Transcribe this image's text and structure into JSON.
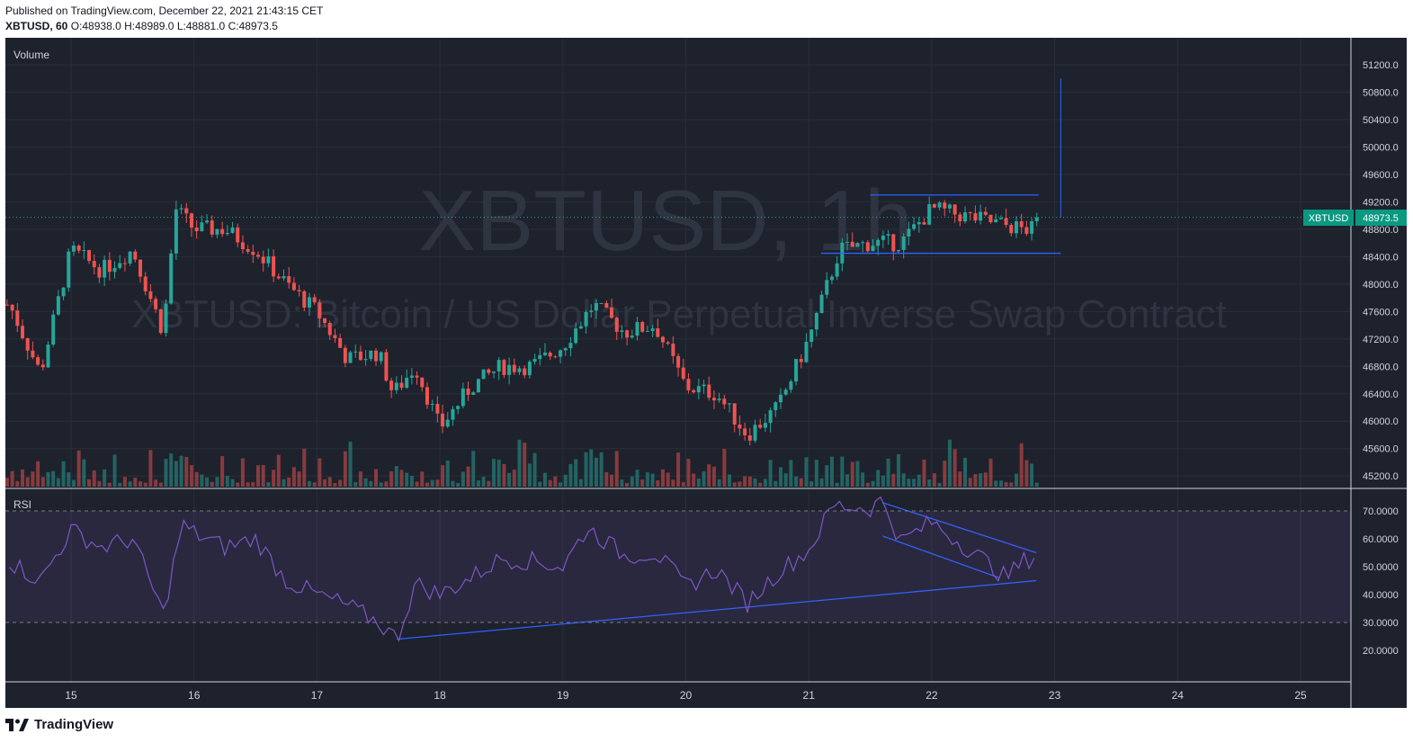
{
  "header": {
    "published": "Published on TradingView.com, December 22, 2021 21:43:15 CET",
    "symbol_line": "XBTUSD, 60",
    "open": "O:48938.0",
    "high": "H:48989.0",
    "low": "L:48881.0",
    "close": "C:48973.5"
  },
  "watermark": {
    "symbol": "XBTUSD, 1h",
    "description": "XBTUSD: Bitcoin / US Dollar Perpetual Inverse Swap Contract"
  },
  "panes": {
    "volume_label": "Volume",
    "rsi_label": "RSI"
  },
  "price_label": {
    "symbol": "XBTUSD",
    "value": "48973.5"
  },
  "footer": {
    "brand": "TradingView"
  },
  "colors": {
    "background": "#1e222d",
    "up": "#26a69a",
    "down": "#ef5350",
    "rsi_line": "#7e57c2",
    "trendline": "#2962ff",
    "price_label_bg": "#089981"
  },
  "chart_data": {
    "type": "candlestick",
    "interval": "60",
    "x_ticks": [
      "15",
      "16",
      "17",
      "18",
      "19",
      "20",
      "21",
      "22",
      "23",
      "24",
      "25"
    ],
    "price_axis": {
      "ticks": [
        "51200.0",
        "50800.0",
        "50400.0",
        "50000.0",
        "49600.0",
        "49200.0",
        "48800.0",
        "48400.0",
        "48000.0",
        "47600.0",
        "47200.0",
        "46800.0",
        "46400.0",
        "46000.0",
        "45600.0",
        "45200.0"
      ],
      "last_price": 48973.5
    },
    "rsi_axis": {
      "ticks": [
        "70.0000",
        "60.0000",
        "50.0000",
        "40.0000",
        "30.0000",
        "20.0000"
      ],
      "band": [
        30,
        70
      ]
    },
    "ohlc_last": {
      "open": 48938.0,
      "high": 48989.0,
      "low": 48881.0,
      "close": 48973.5
    },
    "candles_approx": [
      [
        14.5,
        47700,
        47300
      ],
      [
        14.75,
        46700,
        46900
      ],
      [
        15.0,
        48500,
        48300
      ],
      [
        15.25,
        48200,
        48400
      ],
      [
        15.5,
        48500,
        48700
      ],
      [
        15.75,
        47300,
        48100
      ],
      [
        15.85,
        49100,
        48900
      ],
      [
        16.0,
        48800,
        48900
      ],
      [
        16.25,
        48800,
        48700
      ],
      [
        16.5,
        48500,
        48900
      ],
      [
        16.75,
        48000,
        47800
      ],
      [
        17.0,
        47600,
        47500
      ],
      [
        17.25,
        46900,
        47100
      ],
      [
        17.5,
        47000,
        46700
      ],
      [
        17.62,
        46400,
        46800
      ],
      [
        17.8,
        46800,
        46500
      ],
      [
        18.0,
        45900,
        45700
      ],
      [
        18.25,
        46500,
        46700
      ],
      [
        18.5,
        46800,
        47000
      ],
      [
        18.75,
        46800,
        46700
      ],
      [
        19.0,
        47100,
        47300
      ],
      [
        19.25,
        47700,
        47800
      ],
      [
        19.5,
        47300,
        47200
      ],
      [
        19.75,
        47400,
        47000
      ],
      [
        20.0,
        46500,
        46600
      ],
      [
        20.25,
        46400,
        46200
      ],
      [
        20.5,
        45800,
        45800
      ],
      [
        20.75,
        46200,
        46400
      ],
      [
        21.0,
        47200,
        47100
      ],
      [
        21.25,
        48500,
        48600
      ],
      [
        21.5,
        48600,
        48700
      ],
      [
        21.75,
        48600,
        48700
      ],
      [
        22.0,
        49100,
        49200
      ],
      [
        22.25,
        49000,
        49200
      ],
      [
        22.5,
        48900,
        48800
      ],
      [
        22.75,
        48800,
        48973.5
      ]
    ],
    "rsi_approx": [
      [
        14.5,
        52
      ],
      [
        14.75,
        45
      ],
      [
        15.0,
        63
      ],
      [
        15.25,
        57
      ],
      [
        15.5,
        60
      ],
      [
        15.75,
        33
      ],
      [
        15.9,
        65
      ],
      [
        16.0,
        62
      ],
      [
        16.25,
        57
      ],
      [
        16.5,
        60
      ],
      [
        16.75,
        45
      ],
      [
        17.0,
        40
      ],
      [
        17.25,
        36
      ],
      [
        17.5,
        30
      ],
      [
        17.65,
        24
      ],
      [
        17.8,
        44
      ],
      [
        18.0,
        40
      ],
      [
        18.25,
        46
      ],
      [
        18.5,
        53
      ],
      [
        18.75,
        52
      ],
      [
        19.0,
        50
      ],
      [
        19.2,
        64
      ],
      [
        19.5,
        54
      ],
      [
        19.75,
        55
      ],
      [
        20.0,
        43
      ],
      [
        20.25,
        49
      ],
      [
        20.5,
        37
      ],
      [
        20.75,
        48
      ],
      [
        21.0,
        56
      ],
      [
        21.2,
        72
      ],
      [
        21.5,
        71
      ],
      [
        21.6,
        74
      ],
      [
        21.75,
        59
      ],
      [
        22.0,
        66
      ],
      [
        22.25,
        58
      ],
      [
        22.5,
        50
      ],
      [
        22.6,
        46
      ],
      [
        22.75,
        52
      ],
      [
        22.85,
        54
      ]
    ],
    "drawings": {
      "resistance": 49300,
      "support": 48450,
      "rsi_upper_trend": [
        [
          21.6,
          73
        ],
        [
          22.85,
          55
        ]
      ],
      "rsi_lower_trend": [
        [
          21.6,
          61
        ],
        [
          22.55,
          46
        ]
      ],
      "rsi_rising_support": [
        [
          17.65,
          24
        ],
        [
          22.85,
          45
        ]
      ]
    }
  }
}
